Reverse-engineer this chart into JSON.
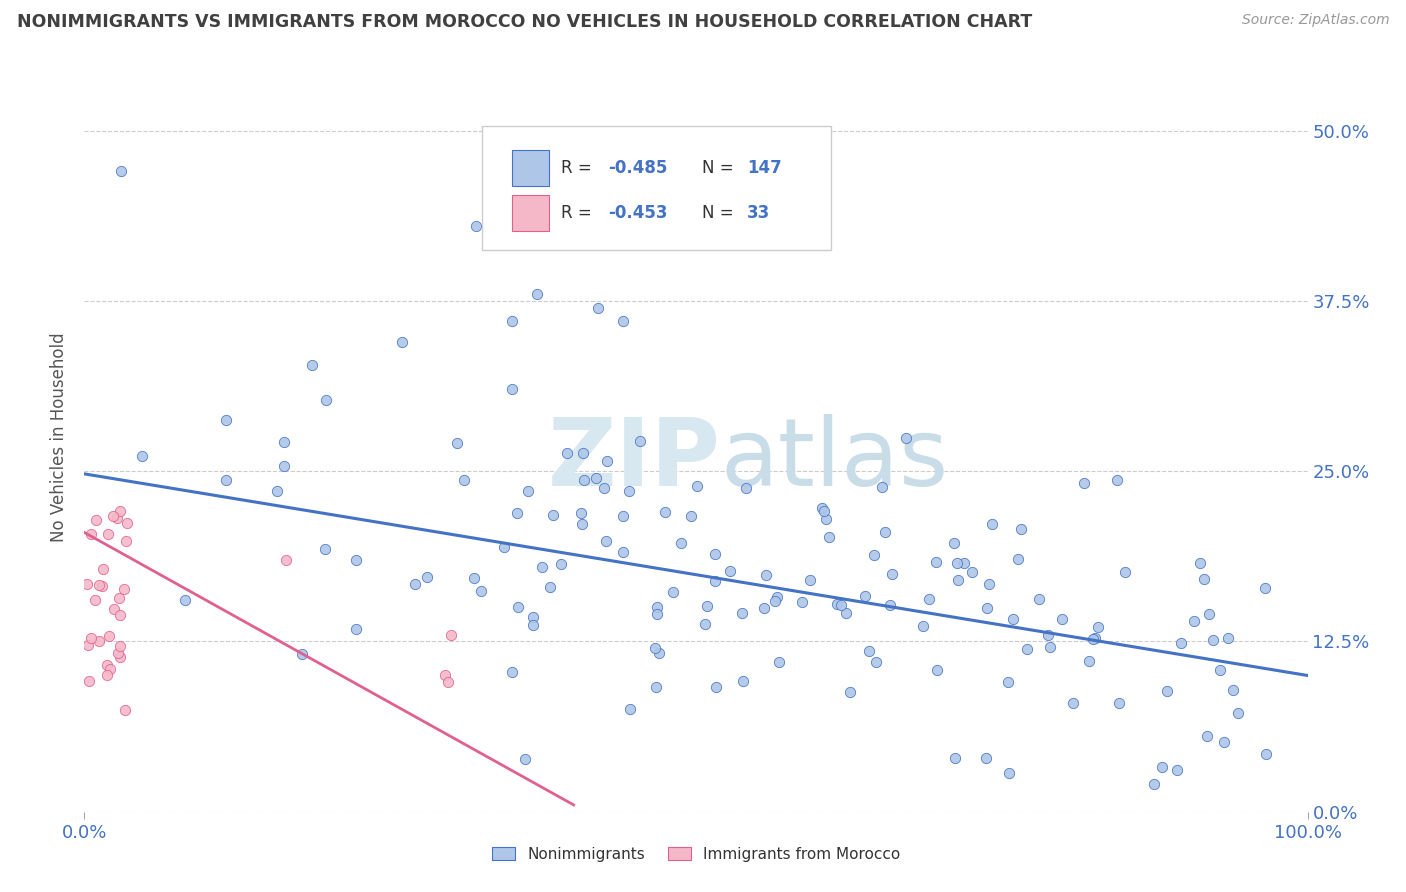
{
  "title": "NONIMMIGRANTS VS IMMIGRANTS FROM MOROCCO NO VEHICLES IN HOUSEHOLD CORRELATION CHART",
  "source_text": "Source: ZipAtlas.com",
  "ylabel": "No Vehicles in Household",
  "xlim": [
    0.0,
    1.0
  ],
  "ylim": [
    0.0,
    0.55
  ],
  "yticks": [
    0.0,
    0.125,
    0.25,
    0.375,
    0.5
  ],
  "ytick_labels_right": [
    "0.0%",
    "12.5%",
    "25.0%",
    "37.5%",
    "50.0%"
  ],
  "xtick_labels": [
    "0.0%",
    "100.0%"
  ],
  "bg_color": "#ffffff",
  "grid_color": "#cccccc",
  "blue_fill": "#aec6e8",
  "blue_edge": "#4472c4",
  "pink_fill": "#f4b8c8",
  "pink_edge": "#e06090",
  "title_color": "#404040",
  "axis_label_color": "#4472c4",
  "ylabel_color": "#555555",
  "watermark_color": "#d8e8f0",
  "R_nonimm": -0.485,
  "N_nonimm": 147,
  "R_immor": -0.453,
  "N_immor": 33,
  "nonimm_intercept": 0.248,
  "nonimm_slope": -0.148,
  "immor_intercept": 0.205,
  "immor_slope": -0.5
}
